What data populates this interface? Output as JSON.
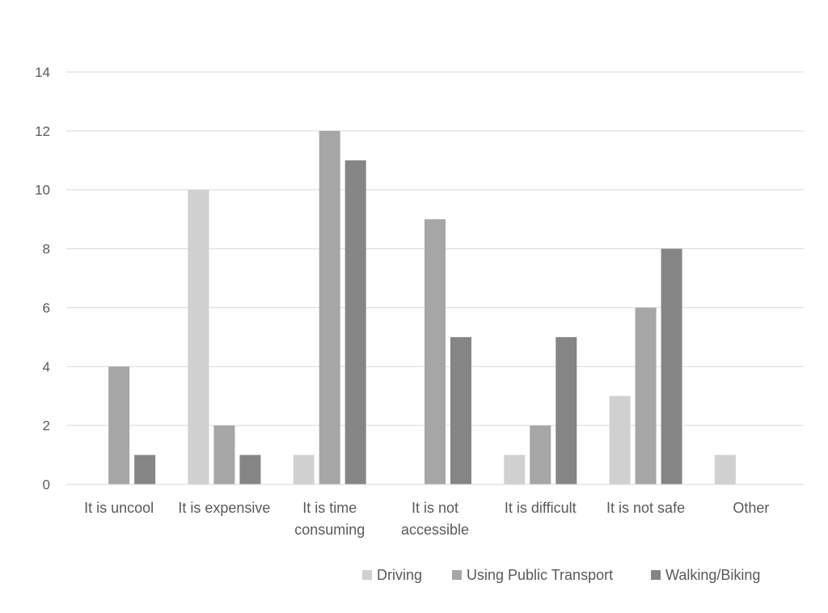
{
  "chart_data": {
    "type": "bar",
    "categories": [
      "It is uncool",
      "It is expensive",
      "It is time consuming",
      "It is not accessible",
      "It is difficult",
      "It is not safe",
      "Other"
    ],
    "category_lines": [
      [
        "It is uncool"
      ],
      [
        "It is expensive"
      ],
      [
        "It is time",
        "consuming"
      ],
      [
        "It is not",
        "accessible"
      ],
      [
        "It is difficult"
      ],
      [
        "It is not safe"
      ],
      [
        "Other"
      ]
    ],
    "series": [
      {
        "name": "Driving",
        "color": "#d0d0d0",
        "values": [
          0,
          10,
          1,
          0,
          1,
          3,
          1
        ]
      },
      {
        "name": "Using Public Transport",
        "color": "#a6a6a6",
        "values": [
          4,
          2,
          12,
          9,
          2,
          6,
          0
        ]
      },
      {
        "name": "Walking/Biking",
        "color": "#858585",
        "values": [
          1,
          1,
          11,
          5,
          5,
          8,
          0
        ]
      }
    ],
    "title": "",
    "xlabel": "",
    "ylabel": "",
    "ylim": [
      0,
      14
    ],
    "yticks": [
      0,
      2,
      4,
      6,
      8,
      10,
      12,
      14
    ],
    "grid": true,
    "legend_position": "bottom-right"
  }
}
